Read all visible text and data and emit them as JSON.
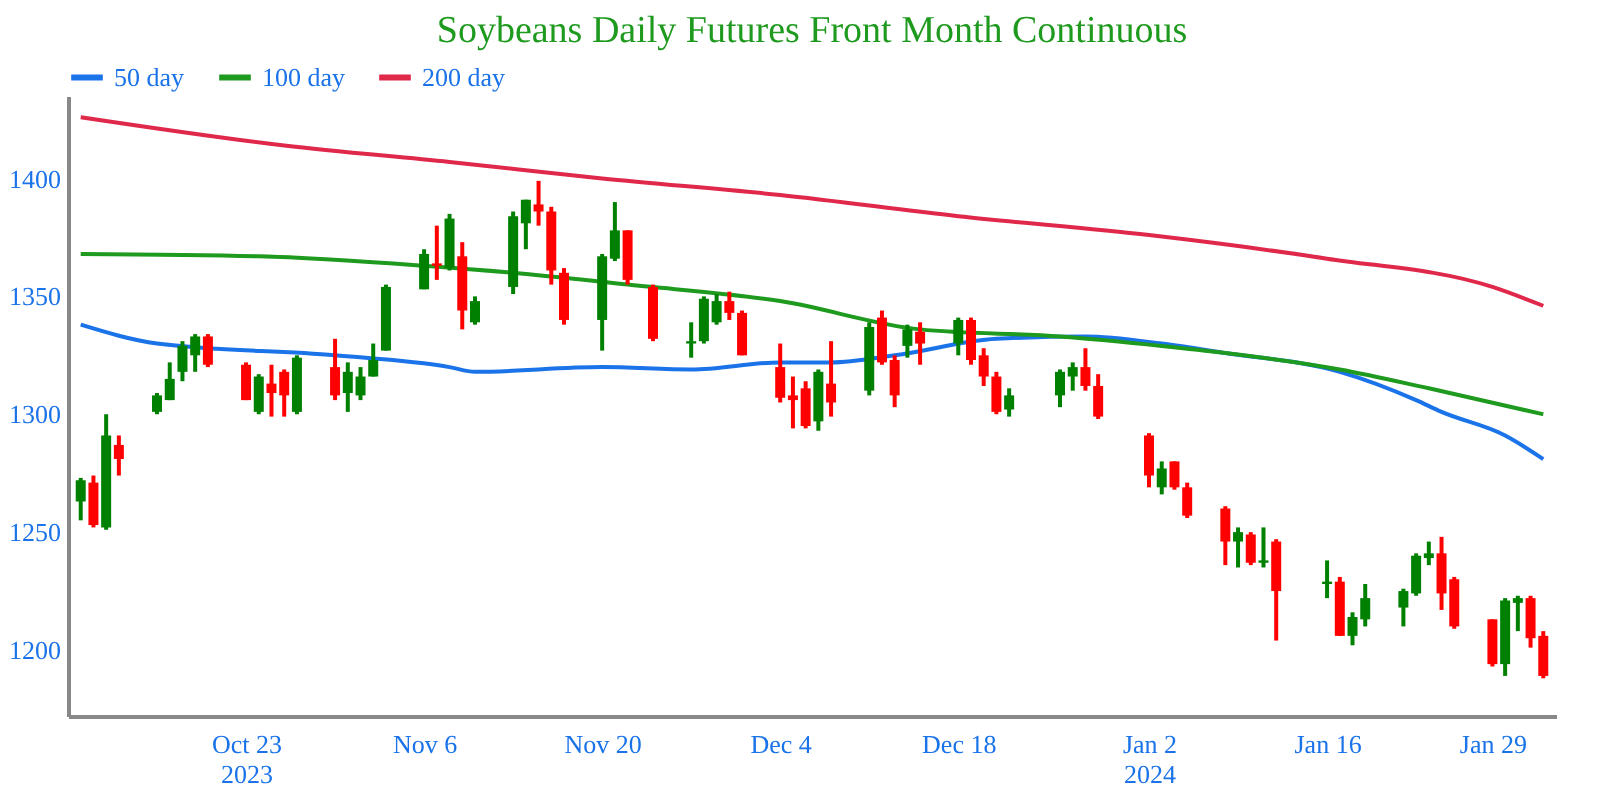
{
  "chart_data": {
    "type": "candlestick",
    "title": "Soybeans Daily Futures Front Month Continuous",
    "x": [
      "2023-10-10",
      "2023-10-11",
      "2023-10-12",
      "2023-10-13",
      "2023-10-16",
      "2023-10-17",
      "2023-10-18",
      "2023-10-19",
      "2023-10-20",
      "2023-10-23",
      "2023-10-24",
      "2023-10-25",
      "2023-10-26",
      "2023-10-27",
      "2023-10-30",
      "2023-10-31",
      "2023-11-01",
      "2023-11-02",
      "2023-11-03",
      "2023-11-06",
      "2023-11-07",
      "2023-11-08",
      "2023-11-09",
      "2023-11-10",
      "2023-11-13",
      "2023-11-14",
      "2023-11-15",
      "2023-11-16",
      "2023-11-17",
      "2023-11-20",
      "2023-11-21",
      "2023-11-22",
      "2023-11-24",
      "2023-11-27",
      "2023-11-28",
      "2023-11-29",
      "2023-11-30",
      "2023-12-01",
      "2023-12-04",
      "2023-12-05",
      "2023-12-06",
      "2023-12-07",
      "2023-12-08",
      "2023-12-11",
      "2023-12-12",
      "2023-12-13",
      "2023-12-14",
      "2023-12-15",
      "2023-12-18",
      "2023-12-19",
      "2023-12-20",
      "2023-12-21",
      "2023-12-22",
      "2023-12-26",
      "2023-12-27",
      "2023-12-28",
      "2023-12-29",
      "2024-01-02",
      "2024-01-03",
      "2024-01-04",
      "2024-01-05",
      "2024-01-08",
      "2024-01-09",
      "2024-01-10",
      "2024-01-11",
      "2024-01-12",
      "2024-01-16",
      "2024-01-17",
      "2024-01-18",
      "2024-01-19",
      "2024-01-22",
      "2024-01-23",
      "2024-01-24",
      "2024-01-25",
      "2024-01-26",
      "2024-01-29",
      "2024-01-30",
      "2024-01-31",
      "2024-02-01",
      "2024-02-02"
    ],
    "ohlc": [
      [
        1263,
        1273,
        1255,
        1272
      ],
      [
        1271,
        1274,
        1252,
        1253
      ],
      [
        1252,
        1300,
        1251,
        1291
      ],
      [
        1287,
        1291,
        1274,
        1281
      ],
      [
        1301,
        1309,
        1300,
        1308
      ],
      [
        1306,
        1322,
        1306,
        1315
      ],
      [
        1318,
        1331,
        1314,
        1329
      ],
      [
        1325,
        1334,
        1318,
        1333
      ],
      [
        1333,
        1334,
        1320,
        1321
      ],
      [
        1321,
        1322,
        1306,
        1306
      ],
      [
        1301,
        1317,
        1300,
        1316
      ],
      [
        1313,
        1321,
        1299,
        1309
      ],
      [
        1318,
        1319,
        1299,
        1308
      ],
      [
        1301,
        1325,
        1300,
        1324
      ],
      [
        1320,
        1332,
        1306,
        1308
      ],
      [
        1309,
        1322,
        1301,
        1318
      ],
      [
        1308,
        1320,
        1306,
        1316
      ],
      [
        1316,
        1330,
        1316,
        1323
      ],
      [
        1327,
        1355,
        1327,
        1354
      ],
      [
        1353,
        1370,
        1353,
        1368
      ],
      [
        1364,
        1380,
        1357,
        1363
      ],
      [
        1362,
        1385,
        1361,
        1383
      ],
      [
        1367,
        1373,
        1336,
        1344
      ],
      [
        1339,
        1350,
        1338,
        1348
      ],
      [
        1354,
        1386,
        1351,
        1384
      ],
      [
        1381,
        1391,
        1370,
        1391
      ],
      [
        1389,
        1399,
        1380,
        1386
      ],
      [
        1386,
        1388,
        1355,
        1361
      ],
      [
        1360,
        1362,
        1338,
        1340
      ],
      [
        1340,
        1368,
        1327,
        1367
      ],
      [
        1366,
        1390,
        1365,
        1378
      ],
      [
        1378,
        1378,
        1355,
        1357
      ],
      [
        1354,
        1355,
        1331,
        1332
      ],
      [
        1330,
        1339,
        1324,
        1331
      ],
      [
        1331,
        1350,
        1330,
        1349
      ],
      [
        1339,
        1351,
        1338,
        1348
      ],
      [
        1348,
        1352,
        1340,
        1343
      ],
      [
        1343,
        1344,
        1325,
        1325
      ],
      [
        1320,
        1330,
        1305,
        1307
      ],
      [
        1308,
        1316,
        1294,
        1306
      ],
      [
        1311,
        1314,
        1294,
        1295
      ],
      [
        1297,
        1319,
        1293,
        1318
      ],
      [
        1313,
        1331,
        1299,
        1305
      ],
      [
        1310,
        1339,
        1308,
        1337
      ],
      [
        1341,
        1344,
        1321,
        1322
      ],
      [
        1323,
        1325,
        1303,
        1308
      ],
      [
        1329,
        1338,
        1324,
        1336
      ],
      [
        1335,
        1339,
        1321,
        1330
      ],
      [
        1330,
        1341,
        1325,
        1340
      ],
      [
        1340,
        1341,
        1321,
        1323
      ],
      [
        1325,
        1328,
        1312,
        1316
      ],
      [
        1316,
        1318,
        1300,
        1301
      ],
      [
        1302,
        1311,
        1299,
        1308
      ],
      [
        1308,
        1319,
        1303,
        1318
      ],
      [
        1316,
        1322,
        1310,
        1320
      ],
      [
        1320,
        1328,
        1310,
        1312
      ],
      [
        1312,
        1317,
        1298,
        1299
      ],
      [
        1291,
        1292,
        1269,
        1274
      ],
      [
        1269,
        1280,
        1266,
        1277
      ],
      [
        1280,
        1280,
        1268,
        1269
      ],
      [
        1269,
        1271,
        1256,
        1257
      ],
      [
        1260,
        1261,
        1236,
        1246
      ],
      [
        1246,
        1252,
        1235,
        1250
      ],
      [
        1249,
        1250,
        1236,
        1237
      ],
      [
        1237,
        1252,
        1235,
        1238
      ],
      [
        1246,
        1247,
        1204,
        1225
      ],
      [
        1228,
        1238,
        1222,
        1229
      ],
      [
        1229,
        1231,
        1206,
        1206
      ],
      [
        1206,
        1216,
        1202,
        1214
      ],
      [
        1213,
        1228,
        1210,
        1222
      ],
      [
        1218,
        1226,
        1210,
        1225
      ],
      [
        1224,
        1241,
        1223,
        1240
      ],
      [
        1239,
        1246,
        1236,
        1241
      ],
      [
        1241,
        1248,
        1217,
        1224
      ],
      [
        1230,
        1231,
        1209,
        1210
      ],
      [
        1213,
        1213,
        1193,
        1194
      ],
      [
        1194,
        1222,
        1189,
        1221
      ],
      [
        1220,
        1223,
        1208,
        1222
      ],
      [
        1222,
        1223,
        1201,
        1205
      ],
      [
        1206,
        1208,
        1188,
        1189
      ]
    ],
    "series": [
      {
        "name": "50 day",
        "type": "line",
        "color": "#1a73e8",
        "x": [
          "2023-10-10",
          "2023-10-16",
          "2023-10-30",
          "2023-11-08",
          "2023-11-10",
          "2023-11-20",
          "2023-11-27",
          "2023-12-04",
          "2023-12-08",
          "2023-12-13",
          "2023-12-21",
          "2023-12-28",
          "2024-01-03",
          "2024-01-08",
          "2024-01-17",
          "2024-01-23",
          "2024-01-25",
          "2024-01-30",
          "2024-02-02"
        ],
        "values": [
          1338,
          1330,
          1325,
          1320,
          1318,
          1320,
          1319,
          1322,
          1322,
          1325,
          1332,
          1333,
          1330,
          1326,
          1318,
          1306,
          1301,
          1291,
          1281
        ]
      },
      {
        "name": "100 day",
        "type": "line",
        "color": "#1e9a1e",
        "x": [
          "2023-10-10",
          "2023-10-24",
          "2023-11-06",
          "2023-11-13",
          "2023-11-22",
          "2023-12-04",
          "2023-12-15",
          "2023-12-26",
          "2024-01-03",
          "2024-01-08",
          "2024-01-17",
          "2024-01-24",
          "2024-02-02"
        ],
        "values": [
          1368,
          1367,
          1363,
          1360,
          1355,
          1348,
          1336,
          1333,
          1329,
          1326,
          1319,
          1311,
          1300
        ]
      },
      {
        "name": "200 day",
        "type": "line",
        "color": "#e0284a",
        "x": [
          "2023-10-10",
          "2023-10-26",
          "2023-11-08",
          "2023-11-20",
          "2023-12-04",
          "2023-12-18",
          "2024-01-02",
          "2024-01-16",
          "2024-01-29",
          "2024-02-02"
        ],
        "values": [
          1426,
          1414,
          1407,
          1400,
          1393,
          1384,
          1376,
          1366,
          1354,
          1346
        ]
      }
    ],
    "xlim": [
      "2023-10-09",
      "2024-02-03"
    ],
    "ylim": [
      1172,
      1435
    ],
    "yticks": [
      1200,
      1250,
      1300,
      1350,
      1400
    ],
    "xticks": [
      {
        "value": "2023-10-23",
        "label": "Oct 23\n2023"
      },
      {
        "value": "2023-11-06",
        "label": "Nov 6"
      },
      {
        "value": "2023-11-20",
        "label": "Nov 20"
      },
      {
        "value": "2023-12-04",
        "label": "Dec 4"
      },
      {
        "value": "2023-12-18",
        "label": "Dec 18"
      },
      {
        "value": "2024-01-02",
        "label": "Jan 2\n2024"
      },
      {
        "value": "2024-01-16",
        "label": "Jan 16"
      },
      {
        "value": "2024-01-29",
        "label": "Jan 29"
      }
    ],
    "legend": "top",
    "grid": false
  }
}
